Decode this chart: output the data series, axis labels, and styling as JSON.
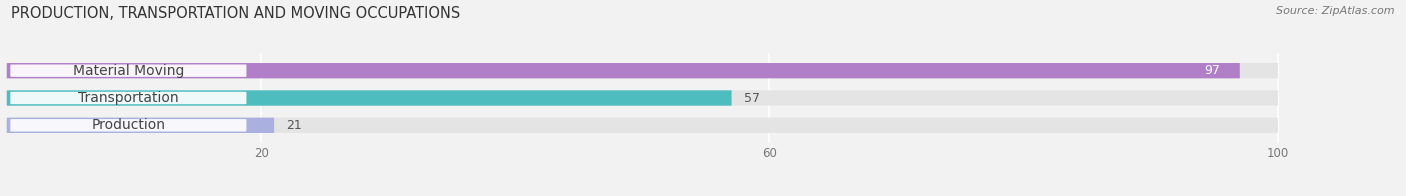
{
  "title": "PRODUCTION, TRANSPORTATION AND MOVING OCCUPATIONS",
  "source": "Source: ZipAtlas.com",
  "categories": [
    "Material Moving",
    "Transportation",
    "Production"
  ],
  "values": [
    97,
    57,
    21
  ],
  "bar_colors": [
    "#b07fc7",
    "#4dbdc0",
    "#aab0e0"
  ],
  "value_text_colors": [
    "white",
    "black",
    "black"
  ],
  "xlim": [
    0,
    107
  ],
  "data_max": 100,
  "xticks": [
    20,
    60,
    100
  ],
  "background_color": "#f2f2f2",
  "bar_bg_color": "#e4e4e4",
  "bar_bg_color2": "#ebebeb",
  "title_fontsize": 10.5,
  "source_fontsize": 8,
  "label_fontsize": 10,
  "value_fontsize": 9,
  "bar_height": 0.52,
  "figsize": [
    14.06,
    1.96
  ],
  "dpi": 100
}
